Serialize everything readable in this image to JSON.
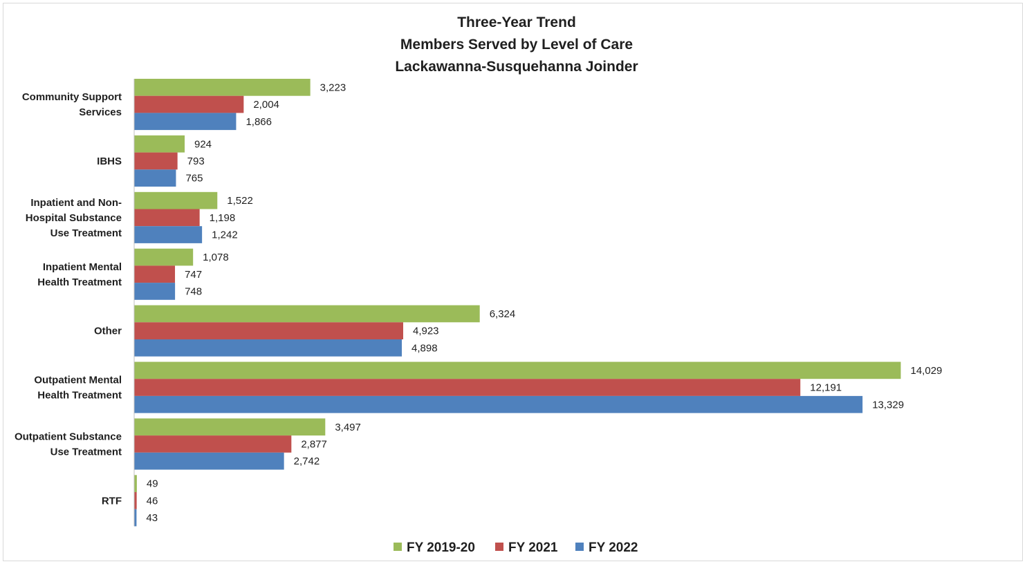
{
  "chart_data": {
    "type": "bar",
    "orientation": "horizontal",
    "title_lines": [
      "Three-Year Trend",
      "Members Served by Level of Care",
      "Lackawanna-Susquehanna Joinder"
    ],
    "categories": [
      [
        "Community Support",
        "Services"
      ],
      [
        "IBHS"
      ],
      [
        "Inpatient and Non-",
        "Hospital Substance",
        "Use Treatment"
      ],
      [
        "Inpatient Mental",
        "Health Treatment"
      ],
      [
        "Other"
      ],
      [
        "Outpatient Mental",
        "Health Treatment"
      ],
      [
        "Outpatient Substance",
        "Use Treatment"
      ],
      [
        "RTF"
      ]
    ],
    "series": [
      {
        "name": "FY 2019-20",
        "color": "#9BBB59",
        "values": [
          3223,
          924,
          1522,
          1078,
          6324,
          14029,
          3497,
          49
        ],
        "labels": [
          "3,223",
          "924",
          "1,522",
          "1,078",
          "6,324",
          "14,029",
          "3,497",
          "49"
        ]
      },
      {
        "name": "FY 2021",
        "color": "#C0504D",
        "values": [
          2004,
          793,
          1198,
          747,
          4923,
          12191,
          2877,
          46
        ],
        "labels": [
          "2,004",
          "793",
          "1,198",
          "747",
          "4,923",
          "12,191",
          "2,877",
          "46"
        ]
      },
      {
        "name": "FY 2022",
        "color": "#4F81BD",
        "values": [
          1866,
          765,
          1242,
          748,
          4898,
          13329,
          2742,
          43
        ],
        "labels": [
          "1,866",
          "765",
          "1,242",
          "748",
          "4,898",
          "13,329",
          "2,742",
          "43"
        ]
      }
    ],
    "xlim": [
      0,
      14029
    ],
    "legend_position": "bottom",
    "grid": false
  }
}
